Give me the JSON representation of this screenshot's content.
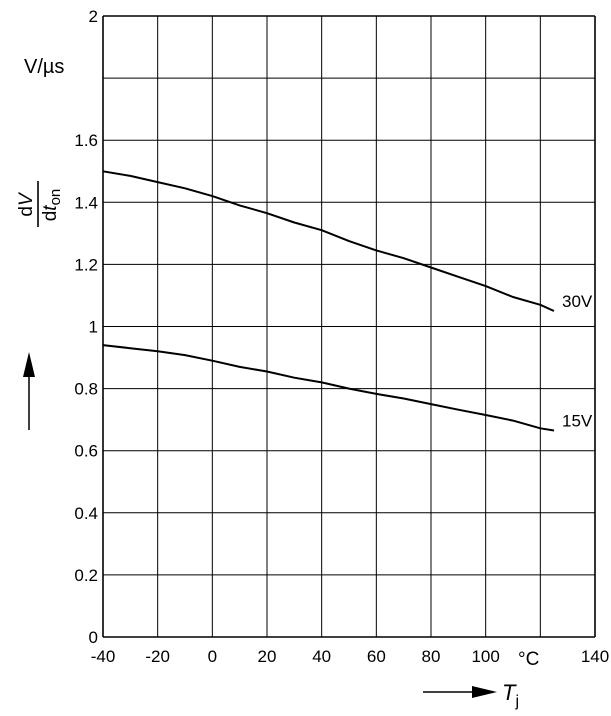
{
  "chart_data": {
    "type": "line",
    "title": "",
    "ylabel_unit": "V/µs",
    "ylabel": {
      "num_prefix": "d",
      "num_var": "V",
      "den_prefix": "d",
      "den_var": "t",
      "den_sub": "on"
    },
    "xlabel": {
      "var": "T",
      "sub": "j"
    },
    "xunit": "°C",
    "xlim": [
      -40,
      140
    ],
    "ylim": [
      0,
      2
    ],
    "xticks": [
      "-40",
      "-20",
      "0",
      "20",
      "40",
      "60",
      "80",
      "100",
      "140"
    ],
    "xtick_values": [
      -40,
      -20,
      0,
      20,
      40,
      60,
      80,
      100,
      140
    ],
    "yticks": [
      "0",
      "0.2",
      "0.4",
      "0.6",
      "0.8",
      "1",
      "1.2",
      "1.4",
      "1.6",
      "2"
    ],
    "ytick_values": [
      0,
      0.2,
      0.4,
      0.6,
      0.8,
      1.0,
      1.2,
      1.4,
      1.6,
      2.0
    ],
    "grid": true,
    "series": [
      {
        "name": "30V",
        "x": [
          -40,
          -30,
          -20,
          -10,
          0,
          10,
          20,
          30,
          40,
          50,
          60,
          70,
          80,
          90,
          100,
          110,
          120,
          125
        ],
        "y": [
          1.5,
          1.485,
          1.465,
          1.445,
          1.42,
          1.39,
          1.365,
          1.335,
          1.31,
          1.275,
          1.245,
          1.22,
          1.19,
          1.16,
          1.13,
          1.095,
          1.07,
          1.05
        ]
      },
      {
        "name": "15V",
        "x": [
          -40,
          -30,
          -20,
          -10,
          0,
          10,
          20,
          30,
          40,
          50,
          60,
          70,
          80,
          90,
          100,
          110,
          120,
          125
        ],
        "y": [
          0.94,
          0.93,
          0.92,
          0.908,
          0.89,
          0.87,
          0.855,
          0.835,
          0.82,
          0.8,
          0.783,
          0.768,
          0.75,
          0.732,
          0.715,
          0.697,
          0.672,
          0.665
        ]
      }
    ]
  },
  "colors": {
    "line": "#000000",
    "grid": "#000000",
    "background": "#ffffff"
  }
}
